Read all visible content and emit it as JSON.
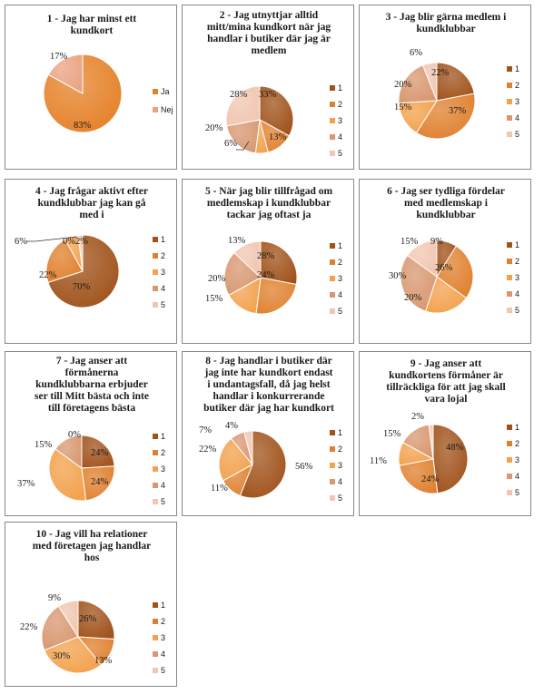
{
  "colors": {
    "s1": "#a0521a",
    "s2": "#e0802e",
    "s3": "#f2a14c",
    "s4": "#d89770",
    "s5": "#f1c6b1",
    "ja": "#e58128",
    "nej": "#eba281"
  },
  "chart_data": [
    {
      "type": "pie",
      "title": [
        "1 - Jag har minst ett",
        "kundkort"
      ],
      "categories": [
        "Ja",
        "Nej"
      ],
      "values": [
        83,
        17
      ],
      "labels": [
        "83%",
        "17%"
      ],
      "legend": "right"
    },
    {
      "type": "pie",
      "title": [
        "2 - Jag utnyttjar alltid",
        "mitt/mina kundkort när jag",
        "handlar i butiker där jag är",
        "medlem"
      ],
      "categories": [
        "1",
        "2",
        "3",
        "4",
        "5"
      ],
      "values": [
        33,
        13,
        6,
        20,
        28
      ],
      "labels": [
        "33%",
        "13%",
        "6%",
        "20%",
        "28%"
      ],
      "legend": "right"
    },
    {
      "type": "pie",
      "title": [
        "3 - Jag blir gärna medlem i",
        "kundklubbar"
      ],
      "categories": [
        "1",
        "2",
        "3",
        "4",
        "5"
      ],
      "values": [
        22,
        37,
        15,
        20,
        6
      ],
      "labels": [
        "22%",
        "37%",
        "15%",
        "20%",
        "6%"
      ],
      "legend": "right"
    },
    {
      "type": "pie",
      "title": [
        "4 - Jag frågar aktivt efter",
        "kundklubbar jag kan gå",
        "med i"
      ],
      "categories": [
        "1",
        "2",
        "3",
        "4",
        "5"
      ],
      "values": [
        70,
        22,
        6,
        0,
        2
      ],
      "labels": [
        "70%",
        "22%",
        "6%",
        "0%",
        "2%"
      ],
      "legend": "right"
    },
    {
      "type": "pie",
      "title": [
        "5 - När jag blir tillfrågad om",
        "medlemskap i kundklubbar",
        "tackar jag oftast ja"
      ],
      "categories": [
        "1",
        "2",
        "3",
        "4",
        "5"
      ],
      "values": [
        28,
        24,
        15,
        20,
        13
      ],
      "labels": [
        "28%",
        "24%",
        "15%",
        "20%",
        "13%"
      ],
      "legend": "right"
    },
    {
      "type": "pie",
      "title": [
        "6 - Jag ser tydliga fördelar",
        "med medlemskap i",
        "kundklubbar"
      ],
      "categories": [
        "1",
        "2",
        "3",
        "4",
        "5"
      ],
      "values": [
        9,
        26,
        20,
        30,
        15
      ],
      "labels": [
        "9%",
        "26%",
        "20%",
        "30%",
        "15%"
      ],
      "legend": "right"
    },
    {
      "type": "pie",
      "title": [
        "7 - Jag anser att",
        "förmånerna",
        "kundklubbarna erbjuder",
        "ser till Mitt bästa och inte",
        "till företagens bästa"
      ],
      "categories": [
        "1",
        "2",
        "3",
        "4",
        "5"
      ],
      "values": [
        24,
        24,
        37,
        15,
        0
      ],
      "labels": [
        "24%",
        "24%",
        "37%",
        "15%",
        "0%"
      ],
      "legend": "right"
    },
    {
      "type": "pie",
      "title": [
        "8 - Jag handlar i butiker där",
        "jag inte har kundkort endast",
        "i undantagsfall, då jag helst",
        "handlar i konkurrerande",
        "butiker där jag har kundkort"
      ],
      "categories": [
        "1",
        "2",
        "3",
        "4",
        "5"
      ],
      "values": [
        56,
        11,
        22,
        7,
        4
      ],
      "labels": [
        "56%",
        "11%",
        "22%",
        "7%",
        "4%"
      ],
      "legend": "right"
    },
    {
      "type": "pie",
      "title": [
        "9 - Jag anser att",
        "kundkortens förmåner är",
        "tillräckliga för att jag skall",
        "vara lojal"
      ],
      "categories": [
        "1",
        "2",
        "3",
        "4",
        "5"
      ],
      "values": [
        48,
        24,
        11,
        15,
        2
      ],
      "labels": [
        "48%",
        "24%",
        "11%",
        "15%",
        "2%"
      ],
      "legend": "right"
    },
    {
      "type": "pie",
      "title": [
        "10 - Jag vill ha relationer",
        "med företagen jag handlar",
        "hos"
      ],
      "categories": [
        "1",
        "2",
        "3",
        "4",
        "5"
      ],
      "values": [
        26,
        13,
        30,
        22,
        9
      ],
      "labels": [
        "26%",
        "13%",
        "30%",
        "22%",
        "9%"
      ],
      "legend": "right"
    }
  ]
}
